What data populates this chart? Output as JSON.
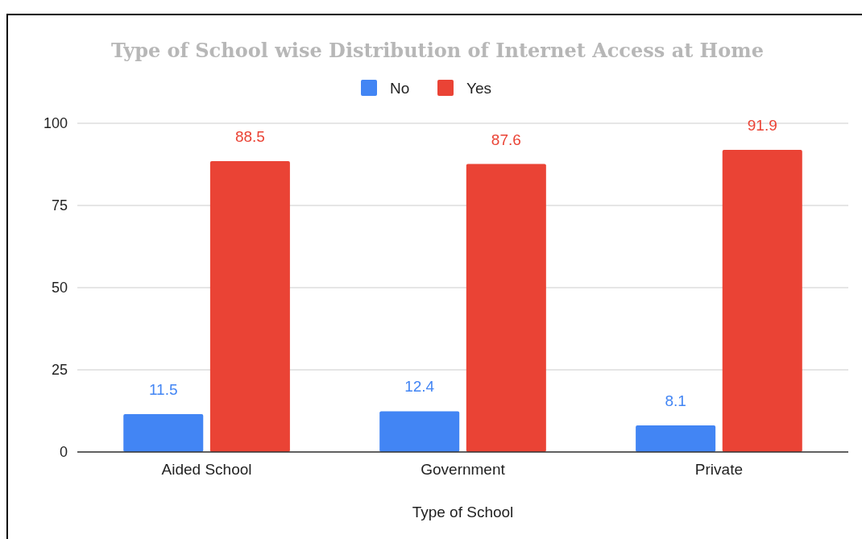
{
  "chart_data": {
    "type": "bar",
    "title": "Type of School wise Distribution of Internet Access at Home",
    "xlabel": "Type of School",
    "categories": [
      "Aided School",
      "Government",
      "Private"
    ],
    "series": [
      {
        "name": "No",
        "color": "#4285f4",
        "values": [
          11.5,
          12.4,
          8.1
        ]
      },
      {
        "name": "Yes",
        "color": "#ea4335",
        "values": [
          88.5,
          87.6,
          91.9
        ]
      }
    ],
    "ylim": [
      0,
      100
    ],
    "yticks": [
      0,
      25,
      50,
      75,
      100
    ],
    "grid": true,
    "legend": "top",
    "data_labels": true
  }
}
